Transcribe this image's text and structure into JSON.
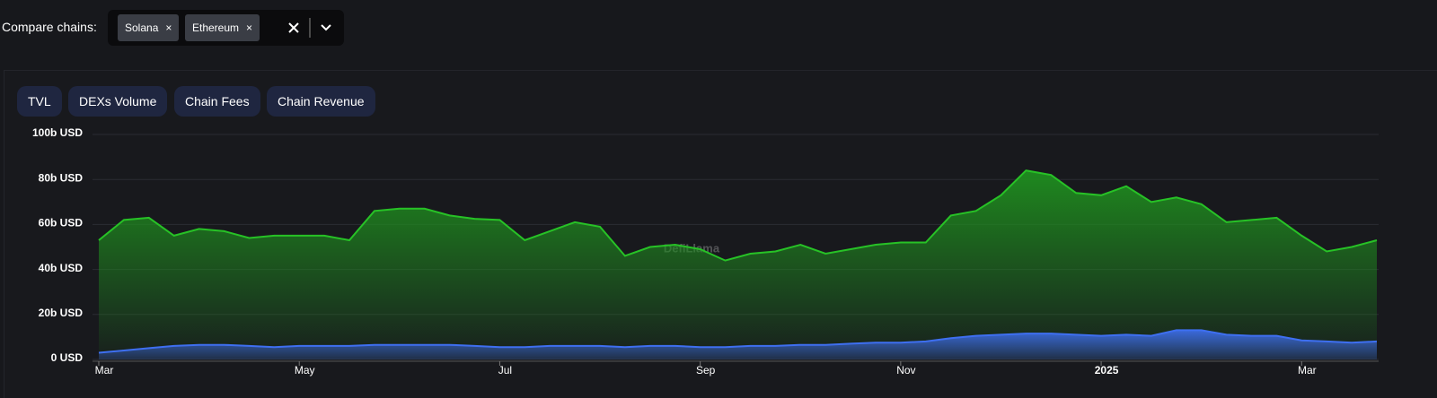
{
  "header": {
    "label": "Compare chains:",
    "chips": [
      "Solana",
      "Ethereum"
    ]
  },
  "tabs": [
    "TVL",
    "DEXs Volume",
    "Chain Fees",
    "Chain Revenue"
  ],
  "watermark": "DefiLlama",
  "chart_data": {
    "type": "area",
    "categories": [
      "Mar",
      null,
      null,
      null,
      null,
      null,
      null,
      null,
      "May",
      null,
      null,
      null,
      null,
      null,
      null,
      null,
      "Jul",
      null,
      null,
      null,
      null,
      null,
      null,
      null,
      "Sep",
      null,
      null,
      null,
      null,
      null,
      null,
      null,
      "Nov",
      null,
      null,
      null,
      null,
      null,
      null,
      null,
      "2025",
      null,
      null,
      null,
      null,
      null,
      null,
      null,
      "Mar",
      null,
      null,
      null
    ],
    "series": [
      {
        "color": "#27c226",
        "values": [
          53,
          62,
          63,
          55,
          58,
          57,
          54,
          55,
          55,
          55,
          53,
          66,
          67,
          67,
          64,
          62.5,
          62,
          53,
          57,
          61,
          59,
          46,
          50,
          51,
          49,
          44,
          47,
          48,
          51,
          47,
          49,
          51,
          52,
          52,
          64,
          66,
          73,
          84,
          82,
          74,
          73,
          77,
          70,
          72,
          69,
          61,
          62,
          63,
          55,
          48,
          50,
          53
        ]
      },
      {
        "color": "#3e6ff0",
        "values": [
          3,
          4,
          5,
          6,
          6.5,
          6.5,
          6,
          5.5,
          6,
          6,
          6,
          6.5,
          6.5,
          6.5,
          6.5,
          6,
          5.5,
          5.5,
          6,
          6,
          6,
          5.5,
          6,
          6,
          5.5,
          5.5,
          6,
          6,
          6.5,
          6.5,
          7,
          7.5,
          7.5,
          8,
          9.5,
          10.5,
          11,
          11.5,
          11.5,
          11,
          10.5,
          11,
          10.5,
          13,
          13,
          11,
          10.5,
          10.5,
          8.5,
          8,
          7.5,
          8
        ]
      }
    ],
    "ylim": [
      0,
      100
    ],
    "yticks": [
      {
        "value": 0,
        "label": "0 USD"
      },
      {
        "value": 20,
        "label": "20b USD"
      },
      {
        "value": 40,
        "label": "40b USD"
      },
      {
        "value": 60,
        "label": "60b USD"
      },
      {
        "value": 80,
        "label": "80b USD"
      },
      {
        "value": 100,
        "label": "100b USD"
      }
    ],
    "grid": true
  }
}
